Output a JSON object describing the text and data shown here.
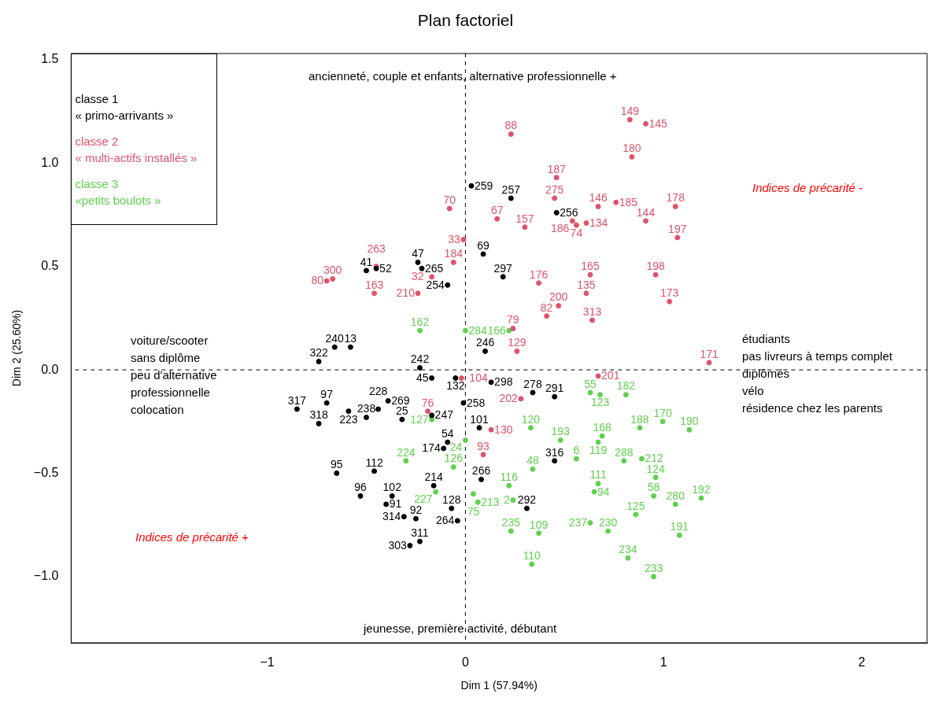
{
  "chart_data": {
    "type": "scatter",
    "title": "Plan factoriel",
    "xlabel": "Dim 1 (57.94%)",
    "ylabel": "Dim 2 (25.60%)",
    "xlim": [
      -1.99,
      2.33
    ],
    "xticks": [
      {
        "value": -1,
        "label": "−1"
      },
      0,
      1,
      2
    ],
    "ylim": [
      -1.32,
      1.53
    ],
    "yticks": [
      {
        "value": -1,
        "label": "−1.0"
      },
      {
        "value": -0.5,
        "label": "−0.5"
      },
      {
        "value": 0,
        "label": "0.0"
      },
      {
        "value": 0.5,
        "label": "0.5"
      },
      {
        "value": 1,
        "label": "1.0"
      },
      {
        "value": 1.5,
        "label": "1.5"
      }
    ],
    "grid": false,
    "legend": "top left",
    "marker": "circle",
    "ref_lines": [
      {
        "axis": "x",
        "value": 0,
        "line_style": "dashed",
        "color": "#000000"
      },
      {
        "axis": "y",
        "value": 0,
        "line_style": "dashed",
        "color": "#000000"
      }
    ],
    "annotations": [
      "ancienneté, couple et enfants, alternative professionnelle +",
      "jeunesse, première activité, débutant",
      "voiture/scooter\nsans diplôme\npeu d'alternative\nprofessionnelle\ncolocation",
      "étudiants\npas livreurs à temps complet\ndiplômés\nvélo\nrésidence chez les parents",
      "Indices de précarité -",
      "Indices de précarité +",
      {
        "text": "259",
        "x": 0.03,
        "y": 0.89
      },
      {
        "text": "257",
        "x": 0.23,
        "y": 0.83
      },
      {
        "text": "256",
        "x": 0.46,
        "y": 0.76
      },
      {
        "text": "69",
        "x": 0.09,
        "y": 0.56
      },
      {
        "text": "297",
        "x": 0.19,
        "y": 0.45
      },
      {
        "text": "246",
        "x": 0.1,
        "y": 0.09
      },
      {
        "text": "291",
        "x": 0.45,
        "y": -0.13
      },
      {
        "text": "278",
        "x": 0.34,
        "y": -0.11
      },
      {
        "text": "316",
        "x": 0.45,
        "y": -0.44
      },
      {
        "text": "292",
        "x": 0.31,
        "y": -0.67
      },
      {
        "text": "266",
        "x": 0.08,
        "y": -0.53
      },
      {
        "text": "298",
        "x": 0.13,
        "y": -0.06
      },
      {
        "text": "264",
        "x": -0.04,
        "y": -0.73
      },
      {
        "text": "128",
        "x": -0.07,
        "y": -0.67
      },
      {
        "text": "214",
        "x": -0.16,
        "y": -0.56
      },
      {
        "text": "174",
        "x": -0.11,
        "y": -0.38
      },
      {
        "text": "54",
        "x": -0.09,
        "y": -0.35
      },
      {
        "text": "247",
        "x": -0.17,
        "y": -0.22
      },
      {
        "text": "101",
        "x": 0.07,
        "y": -0.28
      },
      {
        "text": "258",
        "x": -0.01,
        "y": -0.16
      },
      {
        "text": "303",
        "x": -0.28,
        "y": -0.85
      },
      {
        "text": "311",
        "x": -0.23,
        "y": -0.83
      },
      {
        "text": "92",
        "x": -0.25,
        "y": -0.72
      },
      {
        "text": "314",
        "x": -0.31,
        "y": -0.71
      },
      {
        "text": "102",
        "x": -0.37,
        "y": -0.61
      },
      {
        "text": "91",
        "x": -0.4,
        "y": -0.65
      },
      {
        "text": "112",
        "x": -0.46,
        "y": -0.49
      },
      {
        "text": "96",
        "x": -0.53,
        "y": -0.61
      },
      {
        "text": "95",
        "x": -0.65,
        "y": -0.5
      },
      {
        "text": "238",
        "x": -0.5,
        "y": -0.23
      },
      {
        "text": "25",
        "x": -0.32,
        "y": -0.24
      },
      {
        "text": "228",
        "x": -0.44,
        "y": -0.19
      },
      {
        "text": "318",
        "x": -0.74,
        "y": -0.26
      },
      {
        "text": "317",
        "x": -0.85,
        "y": -0.19
      },
      {
        "text": "223",
        "x": -0.59,
        "y": -0.2
      },
      {
        "text": "97",
        "x": -0.7,
        "y": -0.16
      },
      {
        "text": "269",
        "x": -0.39,
        "y": -0.15
      },
      {
        "text": "132",
        "x": -0.05,
        "y": -0.04
      },
      {
        "text": "47",
        "x": -0.24,
        "y": 0.52
      },
      {
        "text": "265",
        "x": -0.22,
        "y": 0.49
      },
      {
        "text": "41",
        "x": -0.5,
        "y": 0.48
      },
      {
        "text": "52",
        "x": -0.45,
        "y": 0.49
      },
      {
        "text": "254",
        "x": -0.09,
        "y": 0.41
      },
      {
        "text": "240",
        "x": -0.66,
        "y": 0.11
      },
      {
        "text": "322",
        "x": -0.74,
        "y": 0.04
      },
      {
        "text": "242",
        "x": -0.23,
        "y": 0.01
      },
      {
        "text": "45",
        "x": -0.17,
        "y": -0.04
      },
      {
        "text": "13",
        "x": -0.58,
        "y": 0.11
      },
      {
        "text": "88",
        "x": 0.23,
        "y": 1.14
      },
      {
        "text": "149",
        "x": 0.83,
        "y": 1.21
      },
      {
        "text": "145",
        "x": 0.91,
        "y": 1.19
      },
      {
        "text": "180",
        "x": 0.84,
        "y": 1.03
      },
      {
        "text": "187",
        "x": 0.46,
        "y": 0.93
      },
      {
        "text": "275",
        "x": 0.45,
        "y": 0.83
      },
      {
        "text": "186",
        "x": 0.54,
        "y": 0.72
      },
      {
        "text": "74",
        "x": 0.56,
        "y": 0.7
      },
      {
        "text": "134",
        "x": 0.61,
        "y": 0.71
      },
      {
        "text": "146",
        "x": 0.67,
        "y": 0.79
      },
      {
        "text": "185",
        "x": 0.76,
        "y": 0.81
      },
      {
        "text": "144",
        "x": 0.91,
        "y": 0.72
      },
      {
        "text": "178",
        "x": 1.06,
        "y": 0.79
      },
      {
        "text": "197",
        "x": 1.07,
        "y": 0.64
      },
      {
        "text": "198",
        "x": 0.96,
        "y": 0.46
      },
      {
        "text": "173",
        "x": 1.03,
        "y": 0.33
      },
      {
        "text": "165",
        "x": 0.63,
        "y": 0.46
      },
      {
        "text": "135",
        "x": 0.61,
        "y": 0.37
      },
      {
        "text": "313",
        "x": 0.64,
        "y": 0.24
      },
      {
        "text": "157",
        "x": 0.3,
        "y": 0.69
      },
      {
        "text": "70",
        "x": -0.08,
        "y": 0.78
      },
      {
        "text": "33",
        "x": -0.01,
        "y": 0.63
      },
      {
        "text": "67",
        "x": 0.16,
        "y": 0.73
      },
      {
        "text": "200",
        "x": 0.47,
        "y": 0.31
      },
      {
        "text": "82",
        "x": 0.41,
        "y": 0.26
      },
      {
        "text": "79",
        "x": 0.24,
        "y": 0.2
      },
      {
        "text": "176",
        "x": 0.37,
        "y": 0.42
      },
      {
        "text": "171",
        "x": 1.23,
        "y": 0.035
      },
      {
        "text": "201",
        "x": 0.67,
        "y": -0.03
      },
      {
        "text": "130",
        "x": 0.13,
        "y": -0.29
      },
      {
        "text": "93",
        "x": 0.09,
        "y": -0.41
      },
      {
        "text": "202",
        "x": 0.28,
        "y": -0.14
      },
      {
        "text": "300",
        "x": -0.67,
        "y": 0.44
      },
      {
        "text": "80",
        "x": -0.7,
        "y": 0.43
      },
      {
        "text": "263",
        "x": -0.45,
        "y": 0.5
      },
      {
        "text": "163",
        "x": -0.46,
        "y": 0.37
      },
      {
        "text": "32",
        "x": -0.17,
        "y": 0.45
      },
      {
        "text": "210",
        "x": -0.24,
        "y": 0.37
      },
      {
        "text": "129",
        "x": 0.26,
        "y": 0.09
      },
      {
        "text": "104",
        "x": -0.02,
        "y": -0.04
      },
      {
        "text": "76",
        "x": -0.19,
        "y": -0.2
      },
      {
        "text": "184",
        "x": -0.06,
        "y": 0.52
      },
      {
        "text": "170",
        "x": 0.996,
        "y": -0.25
      },
      {
        "text": "190",
        "x": 1.13,
        "y": -0.29
      },
      {
        "text": "188",
        "x": 0.88,
        "y": -0.28
      },
      {
        "text": "182",
        "x": 0.81,
        "y": -0.12
      },
      {
        "text": "55",
        "x": 0.63,
        "y": -0.11
      },
      {
        "text": "123",
        "x": 0.68,
        "y": -0.12
      },
      {
        "text": "192",
        "x": 1.19,
        "y": -0.62
      },
      {
        "text": "191",
        "x": 1.08,
        "y": -0.8
      },
      {
        "text": "233",
        "x": 0.95,
        "y": -1.0
      },
      {
        "text": "234",
        "x": 0.82,
        "y": -0.91
      },
      {
        "text": "230",
        "x": 0.72,
        "y": -0.78
      },
      {
        "text": "237",
        "x": 0.63,
        "y": -0.74
      },
      {
        "text": "125",
        "x": 0.86,
        "y": -0.7
      },
      {
        "text": "110",
        "x": 0.335,
        "y": -0.94
      },
      {
        "text": "109",
        "x": 0.37,
        "y": -0.79
      },
      {
        "text": "235",
        "x": 0.23,
        "y": -0.78
      },
      {
        "text": "2",
        "x": 0.24,
        "y": -0.63
      },
      {
        "text": "120",
        "x": 0.33,
        "y": -0.28
      },
      {
        "text": "6",
        "x": 0.56,
        "y": -0.43
      },
      {
        "text": "94",
        "x": 0.65,
        "y": -0.59
      },
      {
        "text": "111",
        "x": 0.67,
        "y": -0.55
      },
      {
        "text": "119",
        "x": 0.67,
        "y": -0.35
      },
      {
        "text": "168",
        "x": 0.69,
        "y": -0.32
      },
      {
        "text": "288",
        "x": 0.8,
        "y": -0.44
      },
      {
        "text": "124",
        "x": 0.96,
        "y": -0.52
      },
      {
        "text": "212",
        "x": 0.89,
        "y": -0.43
      },
      {
        "text": "280",
        "x": 1.06,
        "y": -0.65
      },
      {
        "text": "58",
        "x": 0.95,
        "y": -0.61
      },
      {
        "text": "213",
        "x": 0.063,
        "y": -0.64
      },
      {
        "text": "75",
        "x": 0.04,
        "y": -0.6
      },
      {
        "text": "116",
        "x": 0.22,
        "y": -0.56
      },
      {
        "text": "48",
        "x": 0.34,
        "y": -0.48
      },
      {
        "text": "193",
        "x": 0.48,
        "y": -0.34
      },
      {
        "text": "224",
        "x": -0.3,
        "y": -0.44
      },
      {
        "text": "227",
        "x": -0.15,
        "y": -0.59
      },
      {
        "text": "126",
        "x": -0.06,
        "y": -0.47
      },
      {
        "text": "24",
        "x": 0.0,
        "y": -0.34
      },
      {
        "text": "127",
        "x": -0.17,
        "y": -0.24
      },
      {
        "text": "162",
        "x": -0.23,
        "y": 0.19
      },
      {
        "text": "284",
        "x": 0.0,
        "y": 0.19
      },
      {
        "text": "166",
        "x": 0.22,
        "y": 0.19
      }
    ],
    "series": [
      {
        "name": "classe 1\n« primo-arrivants »",
        "color": "#000000",
        "x": [
          0.03,
          0.23,
          0.46,
          0.09,
          0.19,
          0.1,
          0.45,
          0.34,
          0.45,
          0.31,
          0.08,
          0.13,
          -0.04,
          -0.07,
          -0.16,
          -0.11,
          -0.09,
          -0.17,
          0.07,
          -0.01,
          -0.28,
          -0.23,
          -0.25,
          -0.31,
          -0.37,
          -0.4,
          -0.46,
          -0.53,
          -0.65,
          -0.5,
          -0.32,
          -0.44,
          -0.74,
          -0.85,
          -0.59,
          -0.7,
          -0.39,
          -0.05,
          -0.24,
          -0.22,
          -0.5,
          -0.45,
          -0.09,
          -0.66,
          -0.74,
          -0.23,
          -0.17,
          -0.58
        ],
        "values": [
          0.89,
          0.83,
          0.76,
          0.56,
          0.45,
          0.09,
          -0.13,
          -0.11,
          -0.44,
          -0.67,
          -0.53,
          -0.06,
          -0.73,
          -0.67,
          -0.56,
          -0.38,
          -0.35,
          -0.22,
          -0.28,
          -0.16,
          -0.85,
          -0.83,
          -0.72,
          -0.71,
          -0.61,
          -0.65,
          -0.49,
          -0.61,
          -0.5,
          -0.23,
          -0.24,
          -0.19,
          -0.26,
          -0.19,
          -0.2,
          -0.16,
          -0.15,
          -0.04,
          0.52,
          0.49,
          0.48,
          0.49,
          0.41,
          0.11,
          0.04,
          0.01,
          -0.04,
          0.11
        ]
      },
      {
        "name": "classe 2\n« multi-actifs installés »",
        "color": "#df536b",
        "x": [
          0.23,
          0.83,
          0.91,
          0.84,
          0.46,
          0.45,
          0.54,
          0.56,
          0.61,
          0.67,
          0.76,
          0.91,
          1.06,
          1.07,
          0.96,
          1.03,
          0.63,
          0.61,
          0.64,
          0.3,
          -0.08,
          -0.01,
          0.16,
          0.47,
          0.41,
          0.24,
          0.37,
          1.23,
          0.67,
          0.13,
          0.09,
          0.28,
          -0.67,
          -0.7,
          -0.45,
          -0.46,
          -0.17,
          -0.24,
          0.26,
          -0.02,
          -0.19,
          -0.06
        ],
        "values": [
          1.14,
          1.21,
          1.19,
          1.03,
          0.93,
          0.83,
          0.72,
          0.7,
          0.71,
          0.79,
          0.81,
          0.72,
          0.79,
          0.64,
          0.46,
          0.33,
          0.46,
          0.37,
          0.24,
          0.69,
          0.78,
          0.63,
          0.73,
          0.31,
          0.26,
          0.2,
          0.42,
          0.035,
          -0.03,
          -0.29,
          -0.41,
          -0.14,
          0.44,
          0.43,
          0.5,
          0.37,
          0.45,
          0.37,
          0.09,
          -0.04,
          -0.2,
          0.52
        ]
      },
      {
        "name": "classe 3\n«petits boulots »",
        "color": "#61d04f",
        "x": [
          0.996,
          1.13,
          0.88,
          0.81,
          0.63,
          0.68,
          1.19,
          1.08,
          0.95,
          0.82,
          0.72,
          0.63,
          0.86,
          0.335,
          0.37,
          0.23,
          0.24,
          0.33,
          0.56,
          0.65,
          0.67,
          0.67,
          0.69,
          0.8,
          0.96,
          0.89,
          1.06,
          0.95,
          0.063,
          0.04,
          0.22,
          0.34,
          0.48,
          -0.3,
          -0.15,
          -0.06,
          0.0,
          -0.17,
          -0.23,
          0.0,
          0.22
        ],
        "values": [
          -0.25,
          -0.29,
          -0.28,
          -0.12,
          -0.11,
          -0.12,
          -0.62,
          -0.8,
          -1.0,
          -0.91,
          -0.78,
          -0.74,
          -0.7,
          -0.94,
          -0.79,
          -0.78,
          -0.63,
          -0.28,
          -0.43,
          -0.59,
          -0.55,
          -0.35,
          -0.32,
          -0.44,
          -0.52,
          -0.43,
          -0.65,
          -0.61,
          -0.64,
          -0.6,
          -0.56,
          -0.48,
          -0.34,
          -0.44,
          -0.59,
          -0.47,
          -0.34,
          -0.24,
          0.19,
          0.19,
          0.19
        ]
      }
    ]
  }
}
